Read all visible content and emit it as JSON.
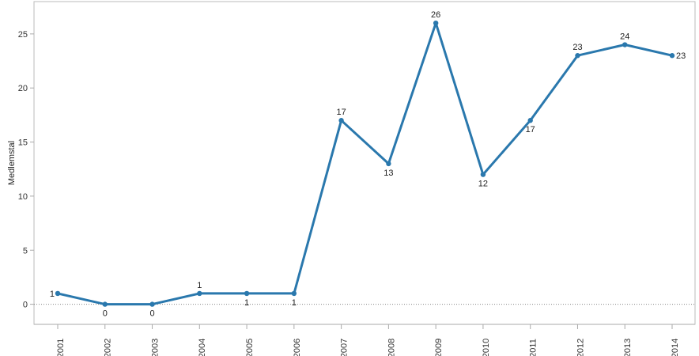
{
  "chart_data": {
    "type": "line",
    "title": "",
    "xlabel": "",
    "ylabel": "Medlemstal",
    "categories": [
      "2001",
      "2002",
      "2003",
      "2004",
      "2005",
      "2006",
      "2007",
      "2008",
      "2009",
      "2010",
      "2011",
      "2012",
      "2013",
      "2014"
    ],
    "series": [
      {
        "name": "",
        "values": [
          1,
          0,
          0,
          1,
          1,
          1,
          17,
          13,
          26,
          12,
          17,
          23,
          24,
          23
        ]
      }
    ],
    "data_labels": [
      "1",
      "0",
      "0",
      "1",
      "1",
      "1",
      "17",
      "13",
      "26",
      "12",
      "17",
      "23",
      "24",
      "23"
    ],
    "ylim": [
      -2,
      28
    ],
    "yticks": [
      0,
      5,
      10,
      15,
      20,
      25
    ],
    "grid": false,
    "zero_line": "dotted",
    "legend": "none",
    "colors": {
      "line": "#2a78ad",
      "axis": "#aaaaaa",
      "zero_line": "#888888"
    }
  }
}
